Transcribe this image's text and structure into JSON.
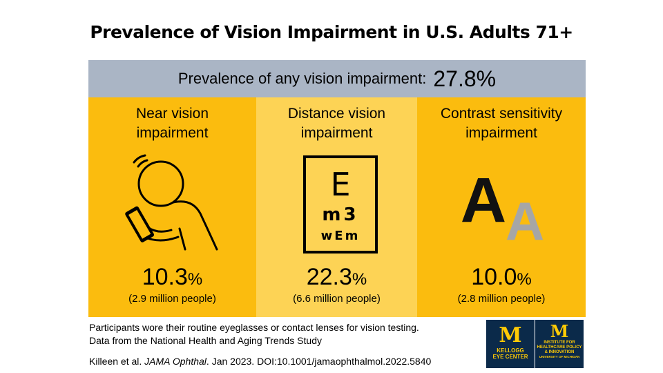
{
  "title": "Prevalence of Vision Impairment in U.S. Adults 71+",
  "banner": {
    "label": "Prevalence of any vision impairment:",
    "value": "27.8%"
  },
  "panels": [
    {
      "title_line1": "Near vision",
      "title_line2": "impairment",
      "value": "10.3",
      "unit": "%",
      "people": "(2.9 million people)",
      "icon": "person-reading-icon"
    },
    {
      "title_line1": "Distance vision",
      "title_line2": "impairment",
      "value": "22.3",
      "unit": "%",
      "people": "(6.6 million people)",
      "icon": "eye-chart-icon",
      "chart_rows": [
        "E",
        "m3",
        "wEm"
      ]
    },
    {
      "title_line1": "Contrast sensitivity",
      "title_line2": "impairment",
      "value": "10.0",
      "unit": "%",
      "people": "(2.8 million people)",
      "icon": "contrast-letters-icon",
      "letters": [
        "A",
        "A"
      ]
    }
  ],
  "notes": {
    "line1": "Participants wore their routine eyeglasses or contact lenses for vision testing.",
    "line2": "Data from the National Health and Aging Trends Study"
  },
  "citation": {
    "authors": "Killeen et al.",
    "journal": "JAMA Ophthal",
    "rest": ". Jan 2023.  DOI:10.1001/jamaophthalmol.2022.5840"
  },
  "logos": [
    {
      "mark": "M",
      "line1": "KELLOGG",
      "line2": "EYE CENTER"
    },
    {
      "mark": "M",
      "line1": "INSTITUTE FOR",
      "line2": "HEALTHCARE POLICY",
      "line3": "& INNOVATION",
      "line4": "UNIVERSITY OF MICHIGAN"
    }
  ],
  "colors": {
    "panel_dark": "#fbbc0e",
    "panel_light": "#fdd355",
    "banner": "#aab5c5",
    "logo_bg": "#0b2a4a",
    "logo_fg": "#ffcb05"
  }
}
